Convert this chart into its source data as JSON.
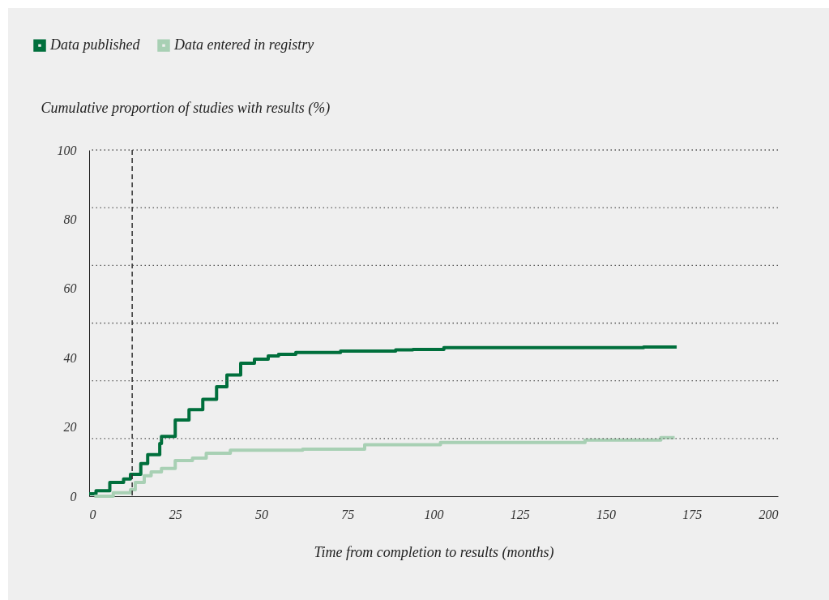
{
  "chart_data": {
    "type": "step",
    "xlabel": "Time from completion to results (months)",
    "ylabel": "Cumulative proportion of studies with results (%)",
    "xlim": [
      0,
      200
    ],
    "xticks": [
      0,
      25,
      50,
      75,
      100,
      125,
      150,
      175,
      200
    ],
    "ylim": [
      0,
      100
    ],
    "yticks": [
      0,
      {
        "value": 16.67,
        "label": null
      },
      20,
      {
        "value": 33.33,
        "label": null
      },
      40,
      {
        "value": 50,
        "label": null
      },
      60,
      {
        "value": 66.67,
        "label": null
      },
      80,
      {
        "value": 83.33,
        "label": null
      },
      {
        "value": 100,
        "label": "100"
      }
    ],
    "grid": "y",
    "legend": "top left",
    "line_style": "solid",
    "ref_lines": [
      {
        "axis": "x",
        "value": 12.5,
        "line_style": "dashed",
        "color": "#333333"
      }
    ],
    "series": [
      {
        "name": "Data published",
        "color": "#006f3c",
        "x": [
          0,
          2,
          6,
          10,
          12,
          15,
          17,
          20.5,
          21,
          25,
          29,
          33,
          37,
          40,
          44,
          48,
          52,
          55,
          60,
          73,
          89,
          94,
          103,
          161,
          170.6
        ],
        "values": [
          0.7,
          1.6,
          4,
          5,
          6.3,
          9.4,
          12,
          15.2,
          17.3,
          22,
          25,
          28,
          31.6,
          35,
          38.4,
          39.6,
          40.5,
          41,
          41.5,
          41.9,
          42.3,
          42.4,
          42.9,
          43.1,
          43.1
        ]
      },
      {
        "name": "Data entered in registry",
        "color": "#a8d0b4",
        "x": [
          1.5,
          7,
          12,
          13.4,
          16,
          18,
          21,
          25,
          30,
          34,
          41,
          55,
          62,
          80,
          102,
          144,
          166,
          170
        ],
        "values": [
          0,
          1,
          1.9,
          4,
          5.9,
          7,
          8,
          10.3,
          11,
          12.4,
          13.3,
          13.3,
          13.6,
          14.9,
          15.5,
          16.2,
          16.9,
          16.9
        ]
      }
    ]
  }
}
